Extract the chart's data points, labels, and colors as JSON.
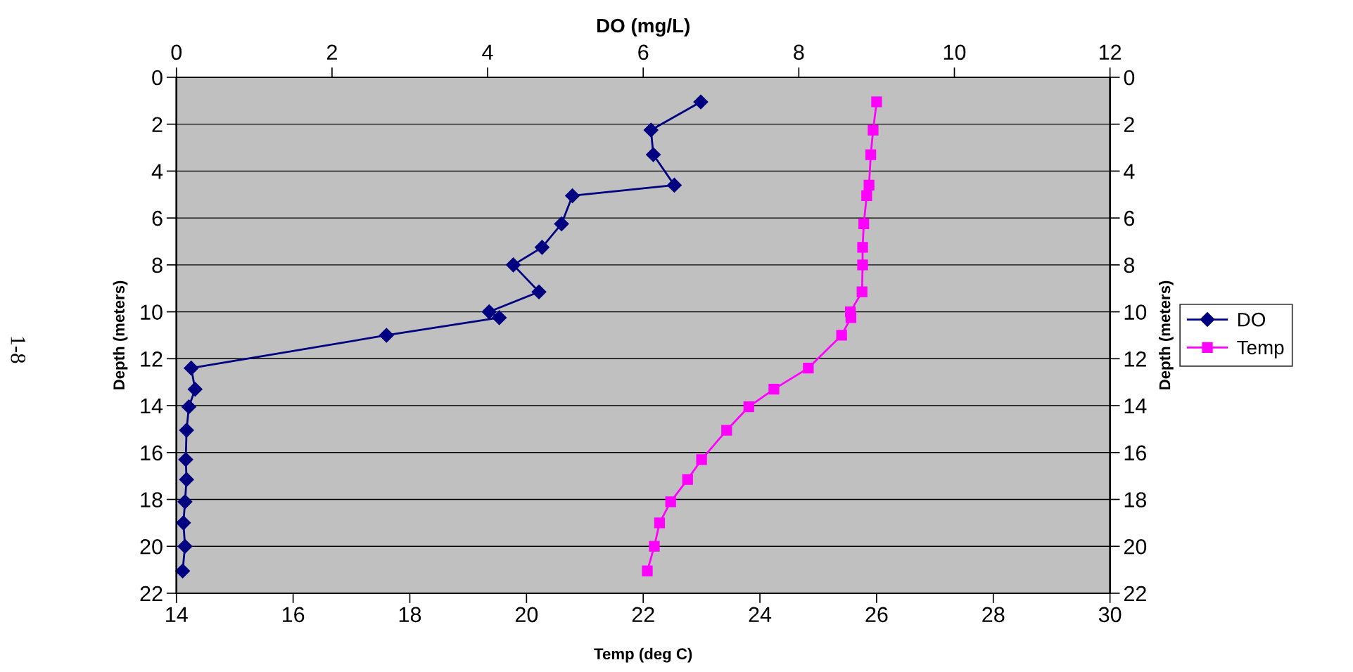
{
  "chart_data": {
    "type": "line",
    "xlabel": "Temp (deg C)",
    "x2label": "DO (mg/L)",
    "ylabel": "Depth (meters)",
    "y2label": "Depth (meters)",
    "xlim": [
      14,
      30
    ],
    "xticks": [
      14,
      16,
      18,
      20,
      22,
      24,
      26,
      28,
      30
    ],
    "x2lim": [
      0,
      12
    ],
    "x2ticks": [
      0,
      2,
      4,
      6,
      8,
      10,
      12
    ],
    "ylim": [
      22,
      0
    ],
    "yticks": [
      0,
      2,
      4,
      6,
      8,
      10,
      12,
      14,
      16,
      18,
      20,
      22
    ],
    "y2lim": [
      22,
      0
    ],
    "y2ticks": [
      0,
      2,
      4,
      6,
      8,
      10,
      12,
      14,
      16,
      18,
      20,
      22
    ],
    "grid": "y",
    "legend": "right",
    "annotations": [
      "1-8"
    ],
    "series": [
      {
        "name": "DO",
        "color": "#000080",
        "axis": "x2",
        "marker": "diamond",
        "x": [
          6.74,
          6.1,
          6.13,
          6.4,
          5.09,
          4.95,
          4.7,
          4.33,
          4.66,
          4.02,
          4.15,
          2.7,
          0.19,
          0.24,
          0.16,
          0.13,
          0.12,
          0.13,
          0.11,
          0.09,
          0.11,
          0.08
        ],
        "values": [
          1.05,
          2.25,
          3.3,
          4.6,
          5.05,
          6.25,
          7.25,
          8.0,
          9.15,
          10.0,
          10.25,
          11.0,
          12.4,
          13.3,
          14.05,
          15.05,
          16.3,
          17.15,
          18.1,
          19.0,
          20.0,
          21.05
        ]
      },
      {
        "name": "Temp",
        "color": "#ff00ff",
        "marker": "square",
        "x": [
          26.0,
          25.94,
          25.9,
          25.87,
          25.83,
          25.78,
          25.76,
          25.76,
          25.75,
          25.55,
          25.56,
          25.4,
          24.83,
          24.24,
          23.81,
          23.43,
          23.0,
          22.76,
          22.47,
          22.28,
          22.19,
          22.07
        ],
        "values": [
          1.05,
          2.25,
          3.3,
          4.6,
          5.05,
          6.25,
          7.25,
          8.0,
          9.15,
          10.0,
          10.25,
          11.0,
          12.4,
          13.3,
          14.05,
          15.05,
          16.3,
          17.15,
          18.1,
          19.0,
          20.0,
          21.05
        ]
      }
    ]
  }
}
